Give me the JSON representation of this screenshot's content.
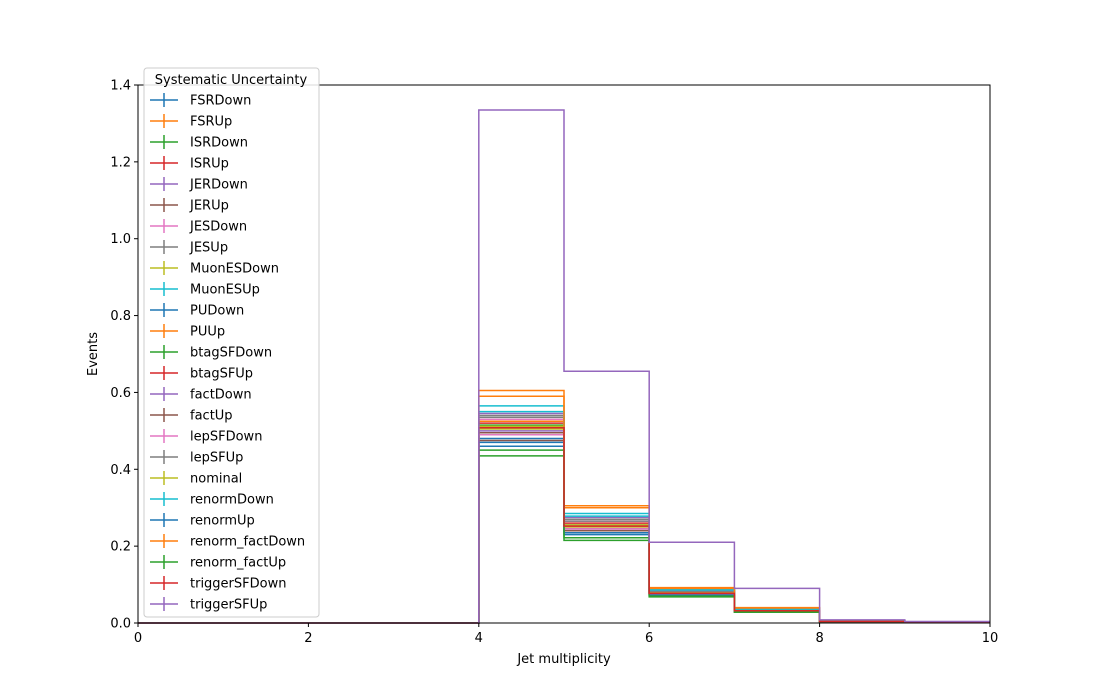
{
  "chart_data": {
    "type": "line",
    "drawstyle": "steps-post",
    "xlabel": "Jet multiplicity",
    "ylabel": "Events",
    "xlim": [
      0,
      10
    ],
    "ylim": [
      0,
      1.4
    ],
    "xticks": [
      0,
      2,
      4,
      6,
      8,
      10
    ],
    "yticks": [
      0.0,
      0.2,
      0.4,
      0.6,
      0.8,
      1.0,
      1.2,
      1.4
    ],
    "grid": false,
    "legend": {
      "title": "Systematic Uncertainty",
      "placement": "top-left"
    },
    "bin_edges": [
      0,
      1,
      2,
      3,
      4,
      5,
      6,
      7,
      8,
      9,
      10
    ],
    "series": [
      {
        "name": "FSRDown",
        "color": "#1f77b4",
        "values": [
          0,
          0,
          0,
          0,
          0.48,
          0.24,
          0.075,
          0.03,
          0.004,
          0.002
        ]
      },
      {
        "name": "FSRUp",
        "color": "#ff7f0e",
        "values": [
          0,
          0,
          0,
          0,
          0.525,
          0.27,
          0.08,
          0.035,
          0.004,
          0.002
        ]
      },
      {
        "name": "ISRDown",
        "color": "#2ca02c",
        "values": [
          0,
          0,
          0,
          0,
          0.515,
          0.255,
          0.078,
          0.033,
          0.004,
          0.002
        ]
      },
      {
        "name": "ISRUp",
        "color": "#d62728",
        "values": [
          0,
          0,
          0,
          0,
          0.51,
          0.25,
          0.077,
          0.032,
          0.004,
          0.002
        ]
      },
      {
        "name": "JERDown",
        "color": "#9467bd",
        "values": [
          0,
          0,
          0,
          0,
          0.5,
          0.245,
          0.076,
          0.031,
          0.004,
          0.002
        ]
      },
      {
        "name": "JERUp",
        "color": "#8c564b",
        "values": [
          0,
          0,
          0,
          0,
          0.495,
          0.245,
          0.076,
          0.031,
          0.004,
          0.002
        ]
      },
      {
        "name": "JESDown",
        "color": "#e377c2",
        "values": [
          0,
          0,
          0,
          0,
          0.53,
          0.265,
          0.082,
          0.034,
          0.004,
          0.002
        ]
      },
      {
        "name": "JESUp",
        "color": "#7f7f7f",
        "values": [
          0,
          0,
          0,
          0,
          0.54,
          0.27,
          0.084,
          0.036,
          0.005,
          0.002
        ]
      },
      {
        "name": "MuonESDown",
        "color": "#bcbd22",
        "values": [
          0,
          0,
          0,
          0,
          0.505,
          0.25,
          0.077,
          0.032,
          0.004,
          0.002
        ]
      },
      {
        "name": "MuonESUp",
        "color": "#17becf",
        "values": [
          0,
          0,
          0,
          0,
          0.565,
          0.285,
          0.088,
          0.037,
          0.005,
          0.002
        ]
      },
      {
        "name": "PUDown",
        "color": "#1f77b4",
        "values": [
          0,
          0,
          0,
          0,
          0.46,
          0.23,
          0.072,
          0.03,
          0.004,
          0.002
        ]
      },
      {
        "name": "PUUp",
        "color": "#ff7f0e",
        "values": [
          0,
          0,
          0,
          0,
          0.605,
          0.305,
          0.092,
          0.04,
          0.005,
          0.003
        ]
      },
      {
        "name": "btagSFDown",
        "color": "#2ca02c",
        "values": [
          0,
          0,
          0,
          0,
          0.435,
          0.215,
          0.068,
          0.028,
          0.003,
          0.002
        ]
      },
      {
        "name": "btagSFUp",
        "color": "#d62728",
        "values": [
          0,
          0,
          0,
          0,
          0.52,
          0.26,
          0.08,
          0.034,
          0.004,
          0.002
        ]
      },
      {
        "name": "factDown",
        "color": "#9467bd",
        "values": [
          0,
          0,
          0,
          0,
          0.545,
          0.275,
          0.085,
          0.036,
          0.005,
          0.002
        ]
      },
      {
        "name": "factUp",
        "color": "#8c564b",
        "values": [
          0,
          0,
          0,
          0,
          0.475,
          0.24,
          0.074,
          0.03,
          0.004,
          0.002
        ]
      },
      {
        "name": "lepSFDown",
        "color": "#e377c2",
        "values": [
          0,
          0,
          0,
          0,
          0.49,
          0.245,
          0.076,
          0.031,
          0.004,
          0.002
        ]
      },
      {
        "name": "lepSFUp",
        "color": "#7f7f7f",
        "values": [
          0,
          0,
          0,
          0,
          0.535,
          0.265,
          0.082,
          0.034,
          0.004,
          0.002
        ]
      },
      {
        "name": "nominal",
        "color": "#bcbd22",
        "values": [
          0,
          0,
          0,
          0,
          0.512,
          0.255,
          0.078,
          0.032,
          0.004,
          0.002
        ]
      },
      {
        "name": "renormDown",
        "color": "#17becf",
        "values": [
          0,
          0,
          0,
          0,
          0.55,
          0.278,
          0.086,
          0.036,
          0.005,
          0.002
        ]
      },
      {
        "name": "renormUp",
        "color": "#1f77b4",
        "values": [
          0,
          0,
          0,
          0,
          0.47,
          0.235,
          0.073,
          0.03,
          0.004,
          0.002
        ]
      },
      {
        "name": "renorm_factDown",
        "color": "#ff7f0e",
        "values": [
          0,
          0,
          0,
          0,
          0.59,
          0.3,
          0.09,
          0.039,
          0.005,
          0.003
        ]
      },
      {
        "name": "renorm_factUp",
        "color": "#2ca02c",
        "values": [
          0,
          0,
          0,
          0,
          0.45,
          0.222,
          0.07,
          0.029,
          0.004,
          0.002
        ]
      },
      {
        "name": "triggerSFDown",
        "color": "#d62728",
        "values": [
          0,
          0,
          0,
          0,
          0.508,
          0.252,
          0.077,
          0.032,
          0.004,
          0.002
        ]
      },
      {
        "name": "triggerSFUp",
        "color": "#9467bd",
        "values": [
          0,
          0,
          0,
          0,
          1.335,
          0.655,
          0.21,
          0.09,
          0.008,
          0.004
        ]
      }
    ]
  }
}
